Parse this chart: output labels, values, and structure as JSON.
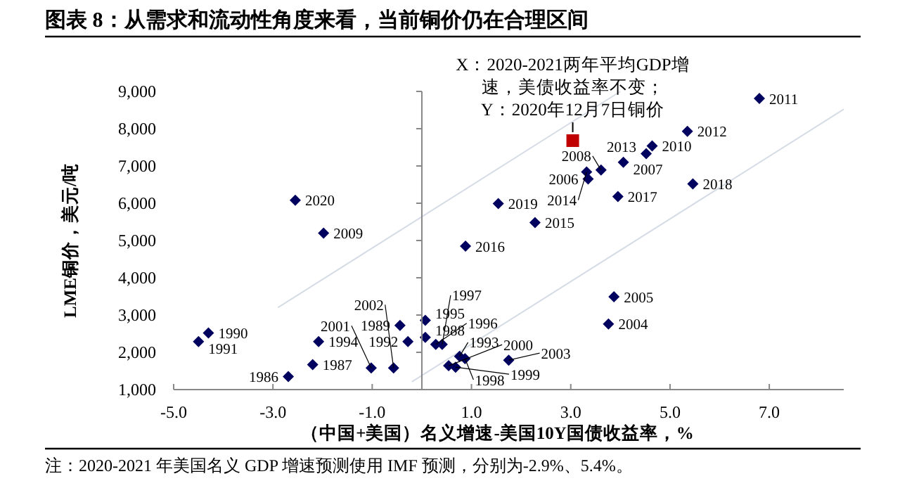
{
  "chart_data": {
    "type": "scatter",
    "title": "图表 8：从需求和流动性角度来看，当前铜价仍在合理区间",
    "xlabel": "（中国+美国）名义增速-美国10Y国债收益率，%",
    "ylabel": "LME铜价，美元/吨",
    "xlim": [
      -5,
      8.5
    ],
    "ylim": [
      1000,
      9000
    ],
    "xticks": [
      {
        "value": -5,
        "label": "-5.0"
      },
      {
        "value": -3,
        "label": "-3.0"
      },
      {
        "value": -1,
        "label": "-1.0"
      },
      {
        "value": 1,
        "label": "1.0"
      },
      {
        "value": 3,
        "label": "3.0"
      },
      {
        "value": 5,
        "label": "5.0"
      },
      {
        "value": 7,
        "label": "7.0"
      }
    ],
    "yticks": [
      {
        "value": 1000,
        "label": "1,000"
      },
      {
        "value": 2000,
        "label": "2,000"
      },
      {
        "value": 3000,
        "label": "3,000"
      },
      {
        "value": 4000,
        "label": "4,000"
      },
      {
        "value": 5000,
        "label": "5,000"
      },
      {
        "value": 6000,
        "label": "6,000"
      },
      {
        "value": 7000,
        "label": "7,000"
      },
      {
        "value": 8000,
        "label": "8,000"
      },
      {
        "value": 9000,
        "label": "9,000"
      }
    ],
    "series": [
      {
        "color": "#00005e",
        "marker": "diamond",
        "x": [
          -2.69,
          -2.2,
          0.07,
          -0.44,
          -4.3,
          -4.5,
          -0.28,
          0.76,
          -2.08,
          0.07,
          0.28,
          0.41,
          0.87,
          0.68,
          0.54,
          -1.02,
          -0.57,
          1.75,
          3.76,
          3.87,
          3.35,
          4.06,
          3.61,
          -1.98,
          4.64,
          6.8,
          5.35,
          4.52,
          3.32,
          2.28,
          0.88,
          3.95,
          5.46,
          1.54,
          -2.55
        ],
        "values": [
          1350,
          1670,
          2400,
          2720,
          2520,
          2290,
          2290,
          1890,
          2290,
          2860,
          2210,
          2210,
          1830,
          1600,
          1640,
          1580,
          1580,
          1790,
          2760,
          3490,
          6650,
          7100,
          6890,
          5200,
          7540,
          8810,
          7930,
          7330,
          6840,
          5480,
          4850,
          6180,
          6520,
          5990,
          6080
        ]
      },
      {
        "color": "#c00000",
        "marker": "square",
        "x": [
          3.04
        ],
        "values": [
          7680
        ]
      },
      {
        "type": "line",
        "color": "#d6dce6",
        "x": [
          -2.9,
          4.0
        ],
        "values": [
          3200,
          9000
        ]
      },
      {
        "type": "line",
        "color": "#d6dce6",
        "x": [
          -0.2,
          8.5
        ],
        "values": [
          1210,
          8520
        ]
      }
    ],
    "annotations": [
      {
        "text": "X：2020-2021两年平均GDP增速，美债收益率不变；Y：2020年12月7日铜价",
        "x": 3.04,
        "y": 7680
      },
      {
        "text": "1986",
        "x": -2.69,
        "y": 1350
      },
      {
        "text": "1987",
        "x": -2.2,
        "y": 1670
      },
      {
        "text": "1988",
        "x": 0.07,
        "y": 2400
      },
      {
        "text": "1989",
        "x": -0.44,
        "y": 2720
      },
      {
        "text": "1990",
        "x": -4.3,
        "y": 2520
      },
      {
        "text": "1991",
        "x": -4.5,
        "y": 2290
      },
      {
        "text": "1992",
        "x": -0.28,
        "y": 2290
      },
      {
        "text": "1993",
        "x": 0.76,
        "y": 1890
      },
      {
        "text": "1994",
        "x": -2.08,
        "y": 2290
      },
      {
        "text": "1995",
        "x": 0.07,
        "y": 2860
      },
      {
        "text": "1996",
        "x": 0.28,
        "y": 2210
      },
      {
        "text": "1997",
        "x": 0.41,
        "y": 2210
      },
      {
        "text": "1998",
        "x": 0.87,
        "y": 1830
      },
      {
        "text": "1999",
        "x": 0.68,
        "y": 1600
      },
      {
        "text": "2000",
        "x": 0.54,
        "y": 1640
      },
      {
        "text": "2001",
        "x": -1.02,
        "y": 1580
      },
      {
        "text": "2002",
        "x": -0.57,
        "y": 1580
      },
      {
        "text": "2003",
        "x": 1.75,
        "y": 1790
      },
      {
        "text": "2004",
        "x": 3.76,
        "y": 2760
      },
      {
        "text": "2005",
        "x": 3.87,
        "y": 3490
      },
      {
        "text": "2006",
        "x": 3.35,
        "y": 6650
      },
      {
        "text": "2007",
        "x": 4.06,
        "y": 7100
      },
      {
        "text": "2008",
        "x": 3.61,
        "y": 6890
      },
      {
        "text": "2009",
        "x": -1.98,
        "y": 5200
      },
      {
        "text": "2010",
        "x": 4.64,
        "y": 7540
      },
      {
        "text": "2011",
        "x": 6.8,
        "y": 8810
      },
      {
        "text": "2012",
        "x": 5.35,
        "y": 7930
      },
      {
        "text": "2013",
        "x": 4.52,
        "y": 7330
      },
      {
        "text": "2014",
        "x": 3.32,
        "y": 6840
      },
      {
        "text": "2015",
        "x": 2.28,
        "y": 5480
      },
      {
        "text": "2016",
        "x": 0.88,
        "y": 4850
      },
      {
        "text": "2017",
        "x": 3.95,
        "y": 6180
      },
      {
        "text": "2018",
        "x": 5.46,
        "y": 6520
      },
      {
        "text": "2019",
        "x": 1.54,
        "y": 5990
      },
      {
        "text": "2020",
        "x": -2.55,
        "y": 6080
      },
      "注：2020-2021 年美国名义 GDP 增速预测使用 IMF 预测，分别为-2.9%、5.4%。"
    ]
  }
}
